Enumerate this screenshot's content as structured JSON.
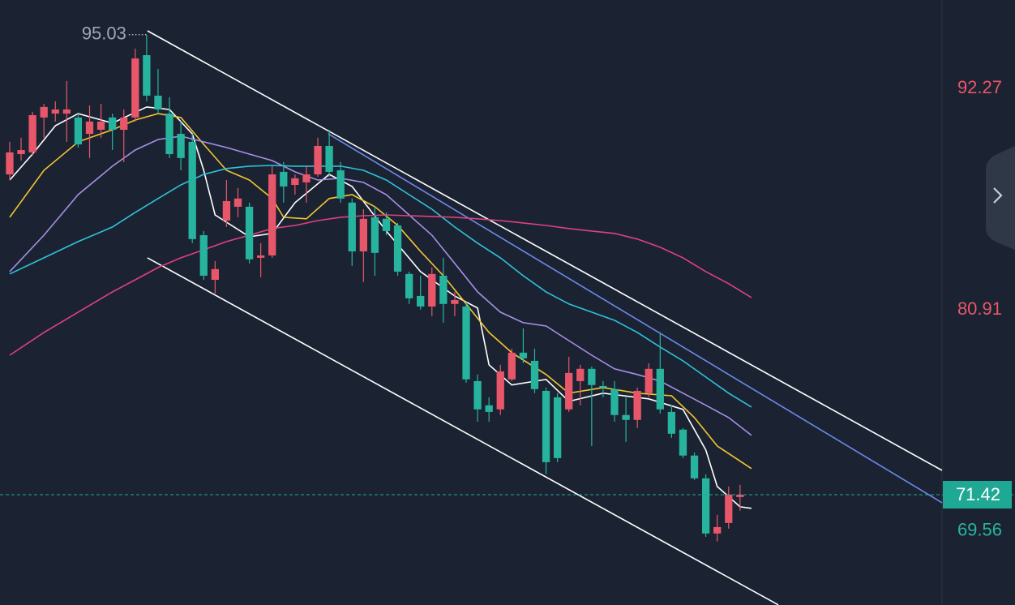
{
  "chart_data": {
    "type": "candlestick",
    "ylim": [
      65.76,
      96.81
    ],
    "xlim": [
      -0.85,
      81.7
    ],
    "up_color": "#e8566a",
    "down_color": "#27b49f",
    "open": [
      87.86,
      88.9,
      88.99,
      90.78,
      90.98,
      90.98,
      90.78,
      89.94,
      90.15,
      90.78,
      90.15,
      90.78,
      93.98,
      91.9,
      90.98,
      89.94,
      89.53,
      84.74,
      82.45,
      85.49,
      86.2,
      86.2,
      83.58,
      83.7,
      87.99,
      87.32,
      87.45,
      87.86,
      89.32,
      88.07,
      86.41,
      83.91,
      85.66,
      85.58,
      85.24,
      82.75,
      81.62,
      81.08,
      82.66,
      81.21,
      81.08,
      77.25,
      76.01,
      75.8,
      77.34,
      78.71,
      78.29,
      76.75,
      76.42,
      75.8,
      77.25,
      77.88,
      77.0,
      76.84,
      75.51,
      75.26,
      76.63,
      77.88,
      75.67,
      74.76,
      73.43,
      72.26,
      69.43,
      69.97,
      71.3
    ],
    "high": [
      89.53,
      89.74,
      91.07,
      91.48,
      91.61,
      92.65,
      90.98,
      91.4,
      91.48,
      90.98,
      91.19,
      94.31,
      95.03,
      93.27,
      91.82,
      90.57,
      89.94,
      84.95,
      83.41,
      87.57,
      87.16,
      86.41,
      84.33,
      88.28,
      88.49,
      87.86,
      88.28,
      89.74,
      90.15,
      88.49,
      86.62,
      86.07,
      86.2,
      85.91,
      85.37,
      82.87,
      82.66,
      83.08,
      83.58,
      81.83,
      81.33,
      77.59,
      76.42,
      78.09,
      78.92,
      79.96,
      78.92,
      76.92,
      76.63,
      78.5,
      78.09,
      78.0,
      77.25,
      77.25,
      76.42,
      76.92,
      78.17,
      79.75,
      76.01,
      74.84,
      73.59,
      72.47,
      70.39,
      71.84,
      71.93
    ],
    "low": [
      87.57,
      88.57,
      88.82,
      89.74,
      90.57,
      89.53,
      89.24,
      88.7,
      89.74,
      89.11,
      88.49,
      90.57,
      91.61,
      90.98,
      88.7,
      88.07,
      84.33,
      82.45,
      81.75,
      85.16,
      85.66,
      83.29,
      82.58,
      83.58,
      86.41,
      86.82,
      86.41,
      87.74,
      87.74,
      86.41,
      83.16,
      82.33,
      82.66,
      84.74,
      82.66,
      81.21,
      80.92,
      80.58,
      80.25,
      80.58,
      77.17,
      75.17,
      75.17,
      75.51,
      77.25,
      78.17,
      76.63,
      72.47,
      73.09,
      75.67,
      76.01,
      73.92,
      76.42,
      75.17,
      74.13,
      74.84,
      76.42,
      75.59,
      74.34,
      73.3,
      72.18,
      69.26,
      69.02,
      69.68,
      70.6
    ],
    "close": [
      88.99,
      89.11,
      90.9,
      91.32,
      91.19,
      91.19,
      89.4,
      90.57,
      90.57,
      90.15,
      90.78,
      93.81,
      91.9,
      91.19,
      88.9,
      88.7,
      84.54,
      82.66,
      83.0,
      86.49,
      86.62,
      83.5,
      83.7,
      87.86,
      87.24,
      87.66,
      87.86,
      89.32,
      87.99,
      86.62,
      83.91,
      85.58,
      83.83,
      84.95,
      82.87,
      81.5,
      81.08,
      82.75,
      81.21,
      81.41,
      77.34,
      75.8,
      75.67,
      77.75,
      78.71,
      78.42,
      76.84,
      73.09,
      73.3,
      77.67,
      77.88,
      77.05,
      76.92,
      75.51,
      75.26,
      76.75,
      77.88,
      75.8,
      74.55,
      73.43,
      72.26,
      69.43,
      69.76,
      71.43,
      71.42
    ],
    "series": [
      {
        "color": "#ffffff",
        "x": [
          0,
          2,
          4,
          6,
          9,
          12,
          14,
          16,
          17,
          18,
          21,
          23,
          25,
          28,
          30,
          33,
          36,
          39,
          41,
          42,
          44,
          47,
          49,
          52,
          56,
          59,
          61,
          62,
          64,
          65
        ],
        "values": [
          87.57,
          88.9,
          90.36,
          90.98,
          90.49,
          91.32,
          91.19,
          89.94,
          88.07,
          85.78,
          84.66,
          84.83,
          86.41,
          87.86,
          87.24,
          84.95,
          82.87,
          81.62,
          81.0,
          78.09,
          77.05,
          77.34,
          76.21,
          76.63,
          76.34,
          75.8,
          73.72,
          71.84,
          70.8,
          70.72
        ]
      },
      {
        "color": "#f3c530",
        "x": [
          0,
          3,
          6,
          9,
          11,
          13,
          15,
          17,
          19,
          21,
          23,
          24,
          26,
          28,
          30,
          32,
          34,
          36,
          38,
          40,
          42,
          44,
          47,
          49,
          52,
          55,
          58,
          60,
          62,
          65
        ],
        "values": [
          85.66,
          88.07,
          89.53,
          90.15,
          90.65,
          90.98,
          90.78,
          89.4,
          88.07,
          87.57,
          86.62,
          85.66,
          85.58,
          86.62,
          86.82,
          86.2,
          85.24,
          83.91,
          82.66,
          81.21,
          79.75,
          78.71,
          77.59,
          76.63,
          76.92,
          76.63,
          76.5,
          75.38,
          73.92,
          72.76
        ]
      },
      {
        "color": "#a88ee6",
        "x": [
          0,
          3,
          6,
          9,
          11,
          13,
          15,
          17,
          19,
          21,
          23,
          25,
          27,
          29,
          31,
          33,
          35,
          37,
          39,
          41,
          43,
          45,
          47,
          49,
          51,
          53,
          55,
          57,
          59,
          61,
          63,
          65
        ],
        "values": [
          82.87,
          84.74,
          86.82,
          88.28,
          89.11,
          89.65,
          89.82,
          89.53,
          89.24,
          88.9,
          88.57,
          87.99,
          87.57,
          87.66,
          87.45,
          86.82,
          85.78,
          84.74,
          83.29,
          81.83,
          80.79,
          80.25,
          80.08,
          79.33,
          78.58,
          77.88,
          77.59,
          77.25,
          76.63,
          76.01,
          75.38,
          74.47
        ]
      },
      {
        "color": "#2fc2da",
        "x": [
          0,
          3,
          6,
          9,
          11,
          13,
          15,
          17,
          19,
          21,
          23,
          25,
          27,
          29,
          31,
          33,
          35,
          37,
          39,
          41,
          43,
          45,
          47,
          49,
          51,
          53,
          55,
          57,
          59,
          61,
          63,
          65
        ],
        "values": [
          82.75,
          83.58,
          84.41,
          85.16,
          85.91,
          86.62,
          87.32,
          87.86,
          88.16,
          88.28,
          88.32,
          88.28,
          88.28,
          88.28,
          88.07,
          87.57,
          86.82,
          86.07,
          85.16,
          84.33,
          83.58,
          82.66,
          81.83,
          81.21,
          80.79,
          80.37,
          79.75,
          79.0,
          78.29,
          77.46,
          76.63,
          75.92
        ]
      },
      {
        "color": "#e0407e",
        "x": [
          0,
          3,
          6,
          9,
          11,
          13,
          15,
          17,
          19,
          21,
          23,
          25,
          27,
          29,
          31,
          33,
          35,
          37,
          39,
          41,
          43,
          45,
          47,
          49,
          51,
          53,
          55,
          57,
          59,
          61,
          63,
          65
        ],
        "values": [
          78.58,
          79.75,
          80.79,
          81.83,
          82.45,
          83.08,
          83.58,
          83.99,
          84.41,
          84.74,
          85.08,
          85.24,
          85.49,
          85.66,
          85.74,
          85.78,
          85.74,
          85.7,
          85.66,
          85.58,
          85.49,
          85.37,
          85.24,
          85.08,
          84.95,
          84.83,
          84.54,
          84.12,
          83.58,
          82.87,
          82.25,
          81.54
        ]
      }
    ],
    "trendlines": [
      {
        "color": "#ffffff",
        "x": [
          12.07,
          81.7
        ],
        "values": [
          95.23,
          72.67
        ]
      },
      {
        "color": "#ffffff",
        "x": [
          12.07,
          67.35
        ],
        "values": [
          83.58,
          65.77
        ]
      },
      {
        "color": "#6d88ea",
        "x": [
          27.92,
          81.7
        ],
        "values": [
          89.94,
          71.01
        ]
      }
    ],
    "yticks": [
      92.27,
      80.91,
      69.56
    ],
    "ytick_colors": [
      "#e8566a",
      "#e8566a",
      "#27b49f"
    ],
    "last_price_color": "#1fa995"
  }
}
